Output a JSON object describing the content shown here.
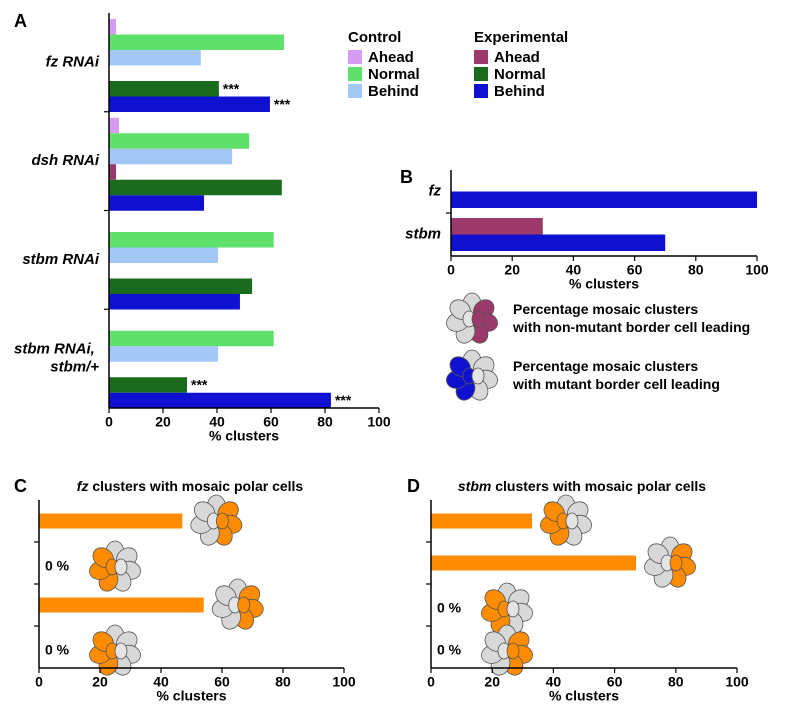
{
  "chart_data": [
    {
      "type": "bar",
      "panel": "A",
      "categories": [
        "fz RNAi",
        "dsh RNAi",
        "stbm RNAi",
        "stbm RNAi, stbm/+"
      ],
      "series": [
        {
          "name": "Ahead",
          "group": "Control",
          "color": "#d69cf3",
          "values": [
            2.6,
            3.7,
            0,
            0
          ]
        },
        {
          "name": "Normal",
          "group": "Control",
          "color": "#5ee06b",
          "values": [
            64.8,
            51.9,
            61,
            61
          ]
        },
        {
          "name": "Behind",
          "group": "Control",
          "color": "#a3c8f5",
          "values": [
            34,
            45.6,
            40.4,
            40.4
          ]
        },
        {
          "name": "Ahead",
          "group": "Experimental",
          "color": "#9b3a6a",
          "values": [
            0,
            2.6,
            0,
            0
          ]
        },
        {
          "name": "Normal",
          "group": "Experimental",
          "color": "#1a6b1e",
          "values": [
            40.7,
            64,
            53,
            28.9
          ],
          "annotations": [
            "***",
            null,
            null,
            "***"
          ]
        },
        {
          "name": "Behind",
          "group": "Experimental",
          "color": "#1010d0",
          "values": [
            59.6,
            35.2,
            48.5,
            82.2
          ],
          "annotations": [
            "***",
            null,
            null,
            "***"
          ]
        }
      ],
      "xlabel": "% clusters",
      "xlim": [
        0,
        100
      ],
      "xticks": [
        0,
        20,
        40,
        60,
        80,
        100
      ]
    },
    {
      "type": "bar",
      "panel": "B",
      "categories": [
        "fz",
        "stbm"
      ],
      "series": [
        {
          "name": "Percentage mosaic clusters with non-mutant border cell leading",
          "color": "#9b3a6a",
          "values": [
            0,
            30
          ]
        },
        {
          "name": "Percentage mosaic clusters with mutant border cell leading",
          "color": "#1010d0",
          "values": [
            100,
            70
          ]
        }
      ],
      "xlabel": "% clusters",
      "xlim": [
        0,
        100
      ],
      "xticks": [
        0,
        20,
        40,
        60,
        80,
        100
      ]
    },
    {
      "type": "bar",
      "panel": "C",
      "title": "fz clusters with mosaic polar cells",
      "categories": [
        null,
        null,
        null,
        null
      ],
      "values": [
        47,
        0,
        54,
        0
      ],
      "value_labels": [
        null,
        "0 %",
        null,
        "0 %"
      ],
      "color": "#ff8c00",
      "xlabel": "% clusters",
      "xlim": [
        0,
        100
      ],
      "xticks": [
        0,
        20,
        40,
        60,
        80,
        100
      ]
    },
    {
      "type": "bar",
      "panel": "D",
      "title": "stbm clusters with mosaic polar cells",
      "categories": [
        null,
        null,
        null,
        null
      ],
      "values": [
        33,
        67,
        0,
        0
      ],
      "value_labels": [
        null,
        null,
        "0 %",
        "0 %"
      ],
      "color": "#ff8c00",
      "xlabel": "% clusters",
      "xlim": [
        0,
        100
      ],
      "xticks": [
        0,
        20,
        40,
        60,
        80,
        100
      ]
    }
  ]
}
